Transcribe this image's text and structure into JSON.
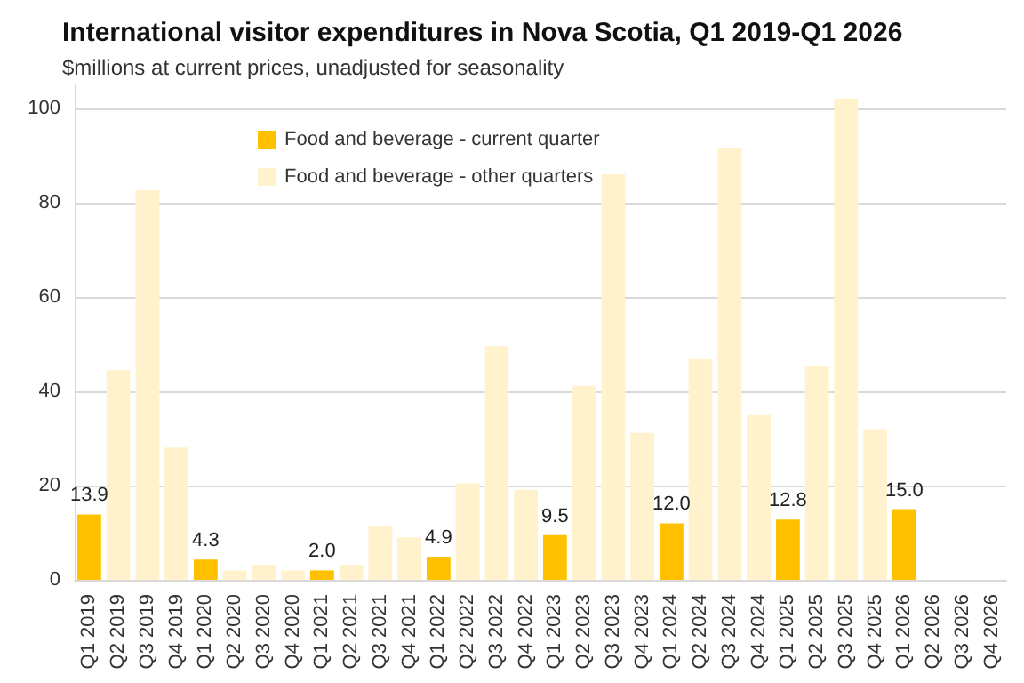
{
  "chart_data": {
    "type": "bar",
    "title": "International visitor expenditures in Nova Scotia, Q1 2019-Q1 2026",
    "subtitle": "$millions at current prices, unadjusted for seasonality",
    "categories": [
      "Q1 2019",
      "Q2 2019",
      "Q3 2019",
      "Q4 2019",
      "Q1 2020",
      "Q2 2020",
      "Q3 2020",
      "Q4 2020",
      "Q1 2021",
      "Q2 2021",
      "Q3 2021",
      "Q4 2021",
      "Q1 2022",
      "Q2 2022",
      "Q3 2022",
      "Q4 2022",
      "Q1 2023",
      "Q2 2023",
      "Q3 2023",
      "Q4 2023",
      "Q1 2024",
      "Q2 2024",
      "Q3 2024",
      "Q4 2024",
      "Q1 2025",
      "Q2 2025",
      "Q3 2025",
      "Q4 2025",
      "Q1 2026",
      "Q2 2026",
      "Q3 2026",
      "Q4 2026"
    ],
    "series": [
      {
        "name": "Food and beverage - current quarter",
        "color": "#ffc000",
        "values": [
          13.9,
          null,
          null,
          null,
          4.3,
          null,
          null,
          null,
          2.0,
          null,
          null,
          null,
          4.9,
          null,
          null,
          null,
          9.5,
          null,
          null,
          null,
          12.0,
          null,
          null,
          null,
          12.8,
          null,
          null,
          null,
          15.0,
          null,
          null,
          null
        ],
        "value_labels": [
          "13.9",
          null,
          null,
          null,
          "4.3",
          null,
          null,
          null,
          "2.0",
          null,
          null,
          null,
          "4.9",
          null,
          null,
          null,
          "9.5",
          null,
          null,
          null,
          "12.0",
          null,
          null,
          null,
          "12.8",
          null,
          null,
          null,
          "15.0",
          null,
          null,
          null
        ]
      },
      {
        "name": "Food and beverage - other quarters",
        "color": "#fff2cc",
        "values": [
          null,
          44.5,
          82.7,
          28.1,
          null,
          2.0,
          3.2,
          2.0,
          null,
          3.2,
          11.4,
          9.0,
          null,
          20.5,
          49.6,
          19.1,
          null,
          41.2,
          86.1,
          31.2,
          null,
          46.9,
          91.8,
          35.0,
          null,
          45.4,
          102.2,
          32.0,
          null,
          null,
          null,
          null
        ]
      }
    ],
    "stacked": true,
    "ylim": [
      0,
      105
    ],
    "yticks": [
      0,
      20,
      40,
      60,
      80,
      100
    ],
    "grid": "y",
    "legend": "top"
  }
}
